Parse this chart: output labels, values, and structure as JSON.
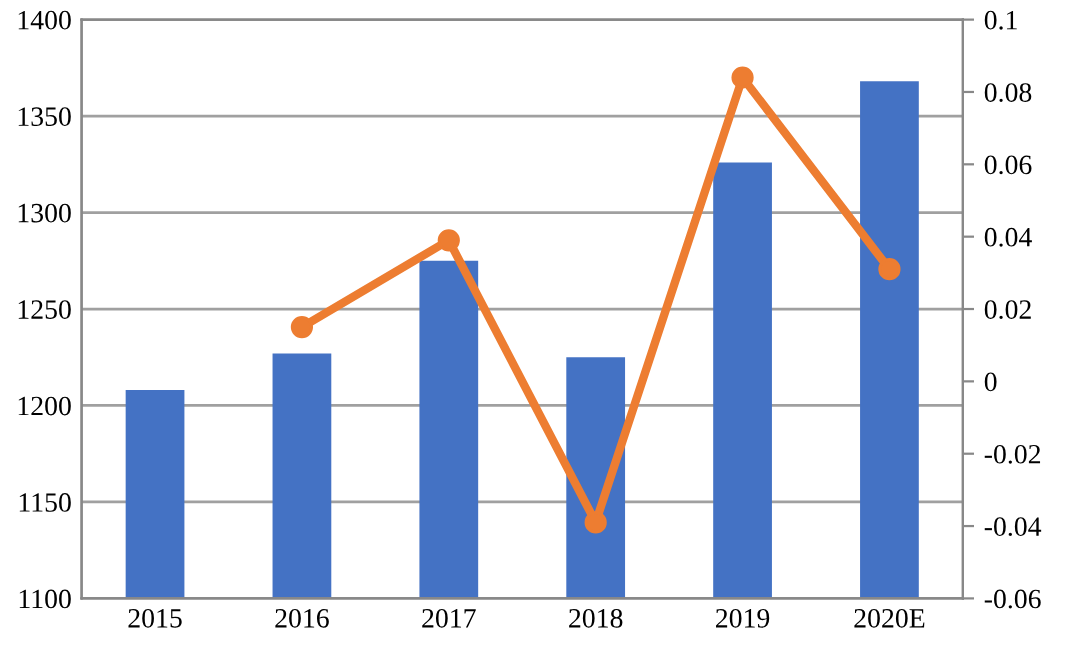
{
  "chart_data": {
    "type": "bar",
    "categories": [
      "2015",
      "2016",
      "2017",
      "2018",
      "2019",
      "2020E"
    ],
    "series": [
      {
        "color": "#4472c4",
        "values": [
          1208,
          1227,
          1275,
          1225,
          1326,
          1368
        ]
      },
      {
        "type": "line",
        "axis": "y2",
        "color": "#ed7d31",
        "marker": "circle",
        "values": [
          null,
          0.015,
          0.039,
          -0.039,
          0.084,
          0.031
        ]
      }
    ],
    "ylim": [
      1100,
      1400
    ],
    "yticks": [
      1100,
      1150,
      1200,
      1250,
      1300,
      1350,
      1400
    ],
    "y2lim": [
      -0.06,
      0.1
    ],
    "y2ticks": [
      -0.06,
      -0.04,
      -0.02,
      0,
      0.02,
      0.04,
      0.06,
      0.08,
      0.1
    ],
    "grid": "y",
    "legend": false
  }
}
